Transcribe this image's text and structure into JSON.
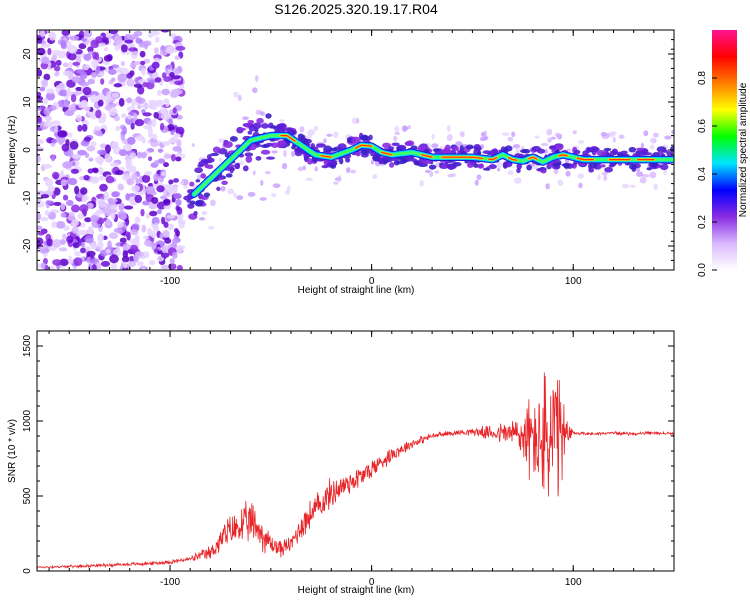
{
  "figure": {
    "title": "S126.2025.320.19.17.R04"
  },
  "chart_data": [
    {
      "type": "heatmap",
      "name": "spectrogram",
      "xlabel": "Height of straight line (km)",
      "ylabel": "Frequency (Hz)",
      "xlim": [
        -166,
        150
      ],
      "ylim": [
        -25,
        25
      ],
      "xticks": [
        -100,
        0,
        100
      ],
      "yticks": [
        -20,
        -10,
        0,
        10,
        20
      ],
      "colorbar": {
        "label": "Normalized spectral amplitude",
        "range": [
          0.0,
          1.0
        ],
        "ticks": [
          "0.0",
          "0.2",
          "0.4",
          "0.6",
          "0.8"
        ],
        "colormap": [
          "#ffffff",
          "#d9b8ff",
          "#8a2be2",
          "#0000ff",
          "#00e5ff",
          "#00ff00",
          "#ffff00",
          "#ff7f00",
          "#ff0000",
          "#ff1493"
        ]
      },
      "ridge": {
        "x": [
          -90,
          -80,
          -70,
          -60,
          -50,
          -42,
          -35,
          -28,
          -20,
          -10,
          -5,
          0,
          5,
          10,
          20,
          30,
          40,
          50,
          60,
          65,
          70,
          75,
          80,
          85,
          90,
          95,
          100,
          105,
          110,
          120,
          130,
          140,
          150
        ],
        "y": [
          -10,
          -6,
          -2,
          2,
          3,
          3,
          1,
          -1,
          -1.5,
          0,
          1,
          0.8,
          -0.5,
          -1,
          -0.5,
          -1.5,
          -1.5,
          -1.5,
          -2,
          -1,
          -2,
          -2.3,
          -1.5,
          -2.5,
          -1.5,
          -1,
          -1.5,
          -2,
          -2,
          -2,
          -2,
          -2,
          -2
        ]
      }
    },
    {
      "type": "line",
      "name": "snr",
      "xlabel": "Height of straight line (km)",
      "ylabel": "SNR (10 * v/v)",
      "xlim": [
        -166,
        150
      ],
      "ylim": [
        0,
        1600
      ],
      "xticks": [
        -100,
        0,
        100
      ],
      "yticks": [
        0,
        500,
        1000,
        1500
      ],
      "series": [
        {
          "name": "SNR",
          "color": "#e8262a",
          "x": [
            -166,
            -150,
            -130,
            -110,
            -100,
            -90,
            -80,
            -72,
            -65,
            -60,
            -57,
            -55,
            -50,
            -45,
            -40,
            -35,
            -30,
            -25,
            -20,
            -15,
            -10,
            -5,
            0,
            10,
            20,
            30,
            40,
            50,
            60,
            70,
            75,
            80,
            85,
            88,
            90,
            92,
            95,
            100,
            110,
            120,
            130,
            140,
            150
          ],
          "y": [
            25,
            30,
            40,
            50,
            60,
            80,
            120,
            250,
            300,
            320,
            300,
            250,
            180,
            150,
            180,
            300,
            380,
            450,
            520,
            560,
            600,
            630,
            680,
            780,
            850,
            900,
            920,
            930,
            920,
            920,
            900,
            880,
            870,
            850,
            870,
            900,
            880,
            920,
            915,
            920,
            915,
            920,
            915
          ],
          "amp": [
            8,
            10,
            12,
            14,
            16,
            20,
            60,
            120,
            150,
            170,
            170,
            140,
            90,
            70,
            60,
            120,
            120,
            120,
            120,
            110,
            100,
            90,
            80,
            60,
            40,
            25,
            20,
            30,
            60,
            120,
            250,
            350,
            500,
            650,
            700,
            600,
            300,
            15,
            12,
            12,
            12,
            12,
            12
          ]
        }
      ]
    }
  ]
}
